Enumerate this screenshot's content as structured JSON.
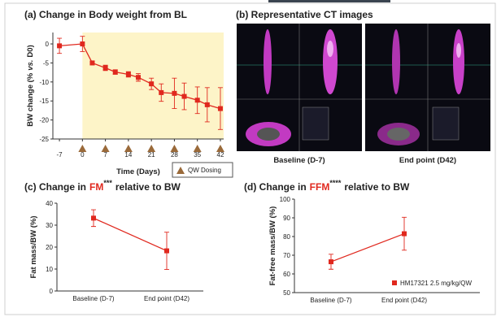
{
  "chart_data": [
    {
      "type": "line",
      "title": "(a) Change in Body weight from BL",
      "x_label": "Time (Days)",
      "y_label_parts": [
        "BW change (%",
        "vs.",
        "D0)"
      ],
      "x": [
        -7,
        0,
        3,
        7,
        10,
        14,
        17,
        21,
        24,
        28,
        31,
        35,
        38,
        42
      ],
      "series": [
        {
          "color": "#e0281e",
          "values": [
            -0.5,
            0,
            -5,
            -6.3,
            -7.4,
            -8,
            -8.8,
            -10.5,
            -12.8,
            -13,
            -13.8,
            -14.8,
            -16,
            -17
          ],
          "errors": [
            2,
            2,
            0.5,
            0.7,
            0.6,
            0.7,
            1,
            1.5,
            2.3,
            4,
            3.5,
            3.5,
            4.5,
            5.5
          ]
        }
      ],
      "xlim": [
        -9,
        43
      ],
      "xticks": [
        -7,
        0,
        7,
        14,
        21,
        28,
        35,
        42
      ],
      "ylim": [
        -25,
        3
      ],
      "yticks": [
        0,
        -5,
        -10,
        -15,
        -20,
        -25
      ],
      "shade": {
        "from": 0,
        "color": "#fdf4c8"
      },
      "dosing": {
        "label": "QW Dosing",
        "days": [
          0,
          7,
          14,
          21,
          28,
          35,
          42
        ],
        "color": "#9a6a3a"
      }
    },
    {
      "type": "line",
      "title_parts": [
        "(c) Change in",
        "FM",
        "***",
        "relative to BW"
      ],
      "title_highlight_color": "#e0281e",
      "y_label": "Fat mass/BW (%)",
      "categories": [
        "Baseline (D-7)",
        "End point (D42)"
      ],
      "series": [
        {
          "color": "#e0281e",
          "values": [
            33.2,
            18.3
          ],
          "errors": [
            3.8,
            8.5
          ]
        }
      ],
      "ylim": [
        0,
        40
      ],
      "yticks": [
        0,
        10,
        20,
        30,
        40
      ]
    },
    {
      "type": "line",
      "title_parts": [
        "(d) Change in",
        "FFM",
        "****",
        "relative to BW"
      ],
      "title_highlight_color": "#e0281e",
      "y_label": "Fat-free mass/BW (%)",
      "categories": [
        "Baseline (D-7)",
        "End point (D42)"
      ],
      "series": [
        {
          "name": "HM17321 2.5 mg/kg/QW",
          "color": "#e0281e",
          "values": [
            66.5,
            81.5
          ],
          "errors": [
            4,
            8.8
          ]
        }
      ],
      "ylim": [
        50,
        100
      ],
      "yticks": [
        50,
        60,
        70,
        80,
        90,
        100
      ]
    }
  ],
  "ct_panel": {
    "title": "(b) Representative CT images",
    "images": [
      {
        "label": "Baseline (D-7)"
      },
      {
        "label": "End point (D42)"
      }
    ]
  }
}
